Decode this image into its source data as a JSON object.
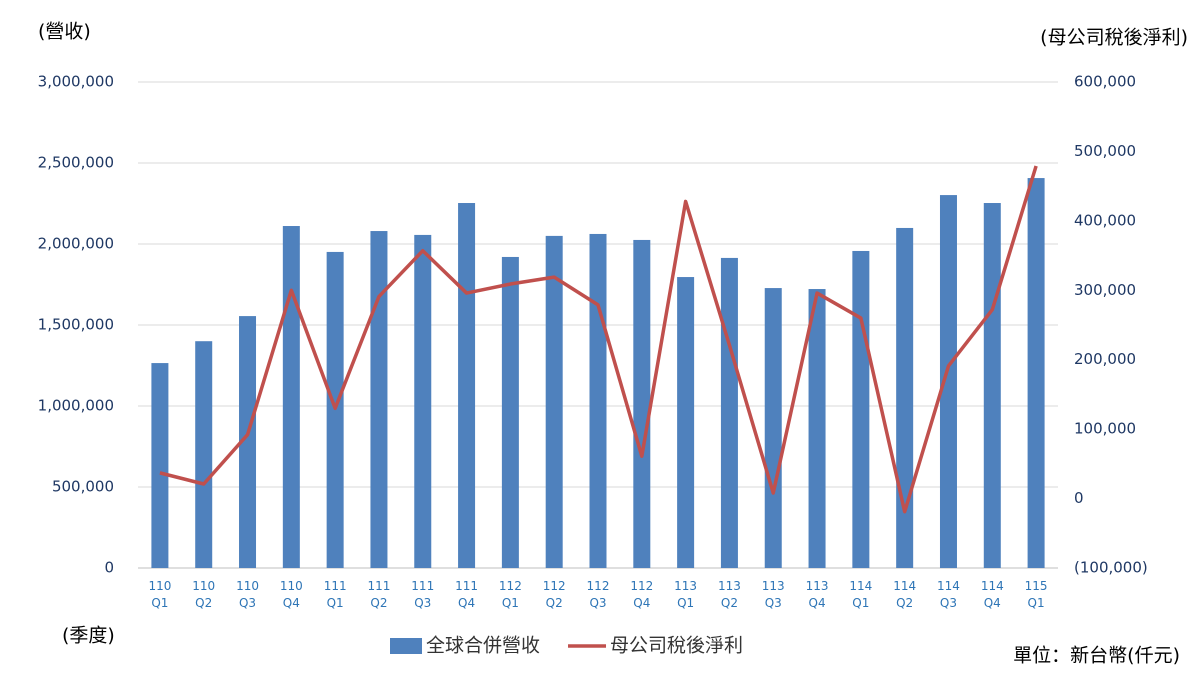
{
  "chart_data": {
    "type": "bar_line",
    "y_title": "(營收)",
    "y2_title": "(母公司稅後淨利)",
    "x_title": "(季度)",
    "unit_note": "單位：新台幣(仟元)",
    "categories": [
      "110 Q1",
      "110 Q2",
      "110 Q3",
      "110 Q4",
      "111 Q1",
      "111 Q2",
      "111 Q3",
      "111 Q4",
      "112 Q1",
      "112 Q2",
      "112 Q3",
      "112 Q4",
      "113 Q1",
      "113 Q2",
      "113 Q3",
      "113 Q4",
      "114 Q1",
      "114 Q2",
      "114 Q3",
      "114 Q4",
      "115 Q1"
    ],
    "series": [
      {
        "name": "全球合併營收",
        "type": "bar",
        "color": "#4f81bd",
        "values": [
          1265000,
          1400000,
          1555000,
          2111000,
          1951000,
          2080000,
          2056000,
          2253000,
          1920000,
          2050000,
          2062000,
          2025000,
          1796000,
          1914000,
          1728000,
          1722000,
          1957000,
          2099000,
          2302000,
          2253000,
          2407000
        ]
      },
      {
        "name": "母公司稅後淨利",
        "type": "line",
        "axis": "y2",
        "color": "#c0504d",
        "values": [
          37000,
          21000,
          92000,
          300000,
          130000,
          291000,
          357000,
          296000,
          309000,
          319000,
          279000,
          61000,
          428000,
          221000,
          8000,
          296000,
          260000,
          -19000,
          191000,
          272000,
          479000
        ]
      }
    ],
    "ylim": [
      0,
      3000000
    ],
    "yticks": [
      0,
      {
        "value": 500000,
        "label": "500,000"
      },
      {
        "value": 1000000,
        "label": "1,000,000"
      },
      {
        "value": 1500000,
        "label": "1,500,000"
      },
      {
        "value": 2000000,
        "label": "2,000,000"
      },
      {
        "value": 2500000,
        "label": "2,500,000"
      },
      {
        "value": 3000000,
        "label": "3,000,000"
      }
    ],
    "y2lim": [
      -100000,
      600000
    ],
    "y2ticks": [
      {
        "value": -100000,
        "label": "(100,000)"
      },
      0,
      {
        "value": 100000,
        "label": "100,000"
      },
      {
        "value": 200000,
        "label": "200,000"
      },
      {
        "value": 300000,
        "label": "300,000"
      },
      {
        "value": 400000,
        "label": "400,000"
      },
      {
        "value": 500000,
        "label": "500,000"
      },
      {
        "value": 600000,
        "label": "600,000"
      }
    ],
    "grid": true
  }
}
